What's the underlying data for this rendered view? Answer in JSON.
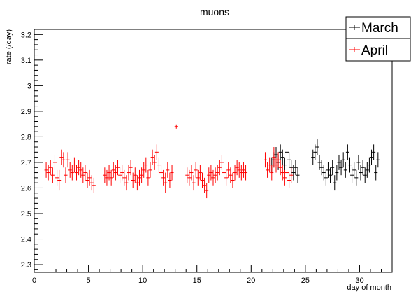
{
  "chart_data": {
    "type": "scatter",
    "title": "muons",
    "xlabel": "day of month",
    "ylabel": "rate (/day)",
    "xlim": [
      0,
      33
    ],
    "ylim": [
      2.27,
      3.22
    ],
    "xticks": [
      0,
      5,
      10,
      15,
      20,
      25,
      30
    ],
    "yticks": [
      2.3,
      2.4,
      2.5,
      2.6,
      2.7,
      2.8,
      2.9,
      3,
      3.1,
      3.2
    ],
    "legend_position": "top-right",
    "grid": false,
    "series": [
      {
        "name": "March",
        "color": "#000000",
        "points": [
          {
            "x": 21.9,
            "y": 2.69,
            "err": 0.03
          },
          {
            "x": 22.1,
            "y": 2.71,
            "err": 0.03
          },
          {
            "x": 22.3,
            "y": 2.73,
            "err": 0.03
          },
          {
            "x": 22.5,
            "y": 2.7,
            "err": 0.03
          },
          {
            "x": 22.7,
            "y": 2.74,
            "err": 0.03
          },
          {
            "x": 22.9,
            "y": 2.72,
            "err": 0.03
          },
          {
            "x": 23.1,
            "y": 2.69,
            "err": 0.03
          },
          {
            "x": 23.3,
            "y": 2.74,
            "err": 0.03
          },
          {
            "x": 23.5,
            "y": 2.71,
            "err": 0.03
          },
          {
            "x": 23.7,
            "y": 2.68,
            "err": 0.03
          },
          {
            "x": 23.9,
            "y": 2.66,
            "err": 0.03
          },
          {
            "x": 24.1,
            "y": 2.68,
            "err": 0.03
          },
          {
            "x": 24.3,
            "y": 2.65,
            "err": 0.03
          },
          {
            "x": 25.7,
            "y": 2.72,
            "err": 0.03
          },
          {
            "x": 25.9,
            "y": 2.74,
            "err": 0.03
          },
          {
            "x": 26.1,
            "y": 2.76,
            "err": 0.03
          },
          {
            "x": 26.3,
            "y": 2.7,
            "err": 0.03
          },
          {
            "x": 26.5,
            "y": 2.68,
            "err": 0.03
          },
          {
            "x": 26.7,
            "y": 2.66,
            "err": 0.03
          },
          {
            "x": 26.9,
            "y": 2.64,
            "err": 0.03
          },
          {
            "x": 27.1,
            "y": 2.67,
            "err": 0.03
          },
          {
            "x": 27.3,
            "y": 2.65,
            "err": 0.03
          },
          {
            "x": 27.5,
            "y": 2.68,
            "err": 0.03
          },
          {
            "x": 27.7,
            "y": 2.62,
            "err": 0.03
          },
          {
            "x": 27.9,
            "y": 2.66,
            "err": 0.03
          },
          {
            "x": 28.1,
            "y": 2.7,
            "err": 0.03
          },
          {
            "x": 28.3,
            "y": 2.68,
            "err": 0.03
          },
          {
            "x": 28.5,
            "y": 2.71,
            "err": 0.03
          },
          {
            "x": 28.7,
            "y": 2.67,
            "err": 0.03
          },
          {
            "x": 28.9,
            "y": 2.74,
            "err": 0.03
          },
          {
            "x": 29.1,
            "y": 2.69,
            "err": 0.03
          },
          {
            "x": 29.3,
            "y": 2.65,
            "err": 0.03
          },
          {
            "x": 29.5,
            "y": 2.67,
            "err": 0.03
          },
          {
            "x": 29.7,
            "y": 2.64,
            "err": 0.03
          },
          {
            "x": 29.9,
            "y": 2.7,
            "err": 0.03
          },
          {
            "x": 30.1,
            "y": 2.66,
            "err": 0.03
          },
          {
            "x": 30.3,
            "y": 2.68,
            "err": 0.03
          },
          {
            "x": 30.5,
            "y": 2.65,
            "err": 0.03
          },
          {
            "x": 30.7,
            "y": 2.67,
            "err": 0.03
          },
          {
            "x": 30.9,
            "y": 2.69,
            "err": 0.03
          },
          {
            "x": 31.1,
            "y": 2.72,
            "err": 0.03
          },
          {
            "x": 31.3,
            "y": 2.74,
            "err": 0.03
          },
          {
            "x": 31.5,
            "y": 2.66,
            "err": 0.03
          },
          {
            "x": 31.7,
            "y": 2.71,
            "err": 0.03
          }
        ]
      },
      {
        "name": "April",
        "color": "#ff0000",
        "points": [
          {
            "x": 1.1,
            "y": 2.67,
            "err": 0.03
          },
          {
            "x": 1.3,
            "y": 2.66,
            "err": 0.03
          },
          {
            "x": 1.5,
            "y": 2.68,
            "err": 0.03
          },
          {
            "x": 1.7,
            "y": 2.65,
            "err": 0.03
          },
          {
            "x": 1.9,
            "y": 2.7,
            "err": 0.03
          },
          {
            "x": 2.1,
            "y": 2.64,
            "err": 0.03
          },
          {
            "x": 2.3,
            "y": 2.63,
            "err": 0.04
          },
          {
            "x": 2.5,
            "y": 2.72,
            "err": 0.03
          },
          {
            "x": 2.7,
            "y": 2.71,
            "err": 0.03
          },
          {
            "x": 2.9,
            "y": 2.65,
            "err": 0.03
          },
          {
            "x": 3.1,
            "y": 2.71,
            "err": 0.03
          },
          {
            "x": 3.3,
            "y": 2.67,
            "err": 0.03
          },
          {
            "x": 3.5,
            "y": 2.66,
            "err": 0.03
          },
          {
            "x": 3.7,
            "y": 2.69,
            "err": 0.03
          },
          {
            "x": 3.9,
            "y": 2.66,
            "err": 0.03
          },
          {
            "x": 4.1,
            "y": 2.68,
            "err": 0.03
          },
          {
            "x": 4.3,
            "y": 2.67,
            "err": 0.03
          },
          {
            "x": 4.5,
            "y": 2.65,
            "err": 0.03
          },
          {
            "x": 4.7,
            "y": 2.66,
            "err": 0.03
          },
          {
            "x": 4.9,
            "y": 2.63,
            "err": 0.03
          },
          {
            "x": 5.1,
            "y": 2.64,
            "err": 0.03
          },
          {
            "x": 5.3,
            "y": 2.62,
            "err": 0.03
          },
          {
            "x": 5.5,
            "y": 2.61,
            "err": 0.03
          },
          {
            "x": 6.5,
            "y": 2.65,
            "err": 0.03
          },
          {
            "x": 6.7,
            "y": 2.64,
            "err": 0.03
          },
          {
            "x": 6.9,
            "y": 2.66,
            "err": 0.03
          },
          {
            "x": 7.1,
            "y": 2.64,
            "err": 0.03
          },
          {
            "x": 7.3,
            "y": 2.67,
            "err": 0.03
          },
          {
            "x": 7.5,
            "y": 2.66,
            "err": 0.03
          },
          {
            "x": 7.7,
            "y": 2.68,
            "err": 0.03
          },
          {
            "x": 7.9,
            "y": 2.65,
            "err": 0.03
          },
          {
            "x": 8.1,
            "y": 2.66,
            "err": 0.03
          },
          {
            "x": 8.3,
            "y": 2.64,
            "err": 0.03
          },
          {
            "x": 8.5,
            "y": 2.62,
            "err": 0.03
          },
          {
            "x": 8.7,
            "y": 2.66,
            "err": 0.03
          },
          {
            "x": 8.9,
            "y": 2.68,
            "err": 0.03
          },
          {
            "x": 9.1,
            "y": 2.63,
            "err": 0.03
          },
          {
            "x": 9.3,
            "y": 2.65,
            "err": 0.03
          },
          {
            "x": 9.5,
            "y": 2.62,
            "err": 0.03
          },
          {
            "x": 9.7,
            "y": 2.64,
            "err": 0.03
          },
          {
            "x": 9.9,
            "y": 2.65,
            "err": 0.03
          },
          {
            "x": 10.1,
            "y": 2.67,
            "err": 0.03
          },
          {
            "x": 10.3,
            "y": 2.69,
            "err": 0.03
          },
          {
            "x": 10.5,
            "y": 2.64,
            "err": 0.03
          },
          {
            "x": 10.7,
            "y": 2.67,
            "err": 0.03
          },
          {
            "x": 10.9,
            "y": 2.72,
            "err": 0.03
          },
          {
            "x": 11.1,
            "y": 2.7,
            "err": 0.03
          },
          {
            "x": 11.3,
            "y": 2.74,
            "err": 0.03
          },
          {
            "x": 11.5,
            "y": 2.69,
            "err": 0.03
          },
          {
            "x": 11.7,
            "y": 2.66,
            "err": 0.03
          },
          {
            "x": 11.9,
            "y": 2.64,
            "err": 0.03
          },
          {
            "x": 12.1,
            "y": 2.62,
            "err": 0.04
          },
          {
            "x": 12.3,
            "y": 2.67,
            "err": 0.03
          },
          {
            "x": 12.5,
            "y": 2.63,
            "err": 0.03
          },
          {
            "x": 12.7,
            "y": 2.66,
            "err": 0.03
          },
          {
            "x": 13.1,
            "y": 2.84,
            "err": 0.0
          },
          {
            "x": 14.1,
            "y": 2.65,
            "err": 0.03
          },
          {
            "x": 14.3,
            "y": 2.64,
            "err": 0.03
          },
          {
            "x": 14.5,
            "y": 2.66,
            "err": 0.03
          },
          {
            "x": 14.7,
            "y": 2.62,
            "err": 0.03
          },
          {
            "x": 14.9,
            "y": 2.67,
            "err": 0.03
          },
          {
            "x": 15.1,
            "y": 2.64,
            "err": 0.03
          },
          {
            "x": 15.3,
            "y": 2.66,
            "err": 0.03
          },
          {
            "x": 15.5,
            "y": 2.63,
            "err": 0.03
          },
          {
            "x": 15.7,
            "y": 2.61,
            "err": 0.03
          },
          {
            "x": 15.9,
            "y": 2.59,
            "err": 0.03
          },
          {
            "x": 16.1,
            "y": 2.65,
            "err": 0.03
          },
          {
            "x": 16.3,
            "y": 2.66,
            "err": 0.03
          },
          {
            "x": 16.5,
            "y": 2.64,
            "err": 0.03
          },
          {
            "x": 16.7,
            "y": 2.65,
            "err": 0.03
          },
          {
            "x": 16.9,
            "y": 2.66,
            "err": 0.03
          },
          {
            "x": 17.1,
            "y": 2.68,
            "err": 0.03
          },
          {
            "x": 17.3,
            "y": 2.7,
            "err": 0.03
          },
          {
            "x": 17.5,
            "y": 2.66,
            "err": 0.03
          },
          {
            "x": 17.7,
            "y": 2.64,
            "err": 0.03
          },
          {
            "x": 17.9,
            "y": 2.67,
            "err": 0.03
          },
          {
            "x": 18.1,
            "y": 2.65,
            "err": 0.03
          },
          {
            "x": 18.3,
            "y": 2.63,
            "err": 0.03
          },
          {
            "x": 18.5,
            "y": 2.66,
            "err": 0.03
          },
          {
            "x": 18.7,
            "y": 2.68,
            "err": 0.03
          },
          {
            "x": 18.9,
            "y": 2.67,
            "err": 0.03
          },
          {
            "x": 19.1,
            "y": 2.66,
            "err": 0.03
          },
          {
            "x": 19.3,
            "y": 2.67,
            "err": 0.03
          },
          {
            "x": 19.5,
            "y": 2.66,
            "err": 0.03
          },
          {
            "x": 21.3,
            "y": 2.71,
            "err": 0.03
          },
          {
            "x": 21.5,
            "y": 2.67,
            "err": 0.03
          },
          {
            "x": 21.7,
            "y": 2.69,
            "err": 0.03
          },
          {
            "x": 21.9,
            "y": 2.66,
            "err": 0.03
          },
          {
            "x": 22.1,
            "y": 2.72,
            "err": 0.04
          },
          {
            "x": 22.3,
            "y": 2.69,
            "err": 0.03
          },
          {
            "x": 22.5,
            "y": 2.71,
            "err": 0.03
          },
          {
            "x": 22.7,
            "y": 2.68,
            "err": 0.03
          },
          {
            "x": 22.9,
            "y": 2.66,
            "err": 0.03
          },
          {
            "x": 23.1,
            "y": 2.64,
            "err": 0.03
          },
          {
            "x": 23.3,
            "y": 2.66,
            "err": 0.03
          },
          {
            "x": 23.5,
            "y": 2.63,
            "err": 0.03
          },
          {
            "x": 23.7,
            "y": 2.65,
            "err": 0.03
          }
        ]
      }
    ]
  }
}
